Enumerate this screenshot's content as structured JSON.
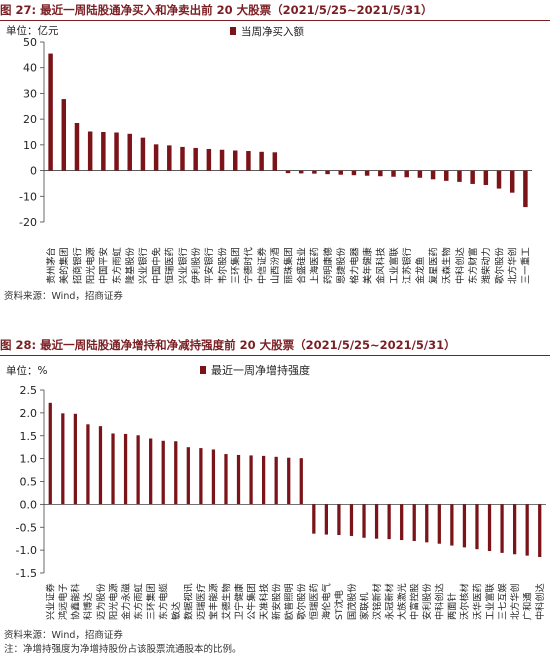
{
  "figures": [
    {
      "title": "图 27:  最近一周陆股通净买入和净卖出前 20 大股票（2021/5/25~2021/5/31）",
      "source": "资料来源：Wind，招商证券",
      "note": ""
    },
    {
      "title": "图 28:  最近一周陆股通净增持和净减持强度前 20 大股票（2021/5/25~2021/5/31）",
      "source": "资料来源：Wind，招商证券",
      "note": "注：净增持强度为净增持股份占该股票流通股本的比例。"
    }
  ],
  "colors": {
    "bar": "#7b1418",
    "title": "#7a1f23"
  },
  "chart_data": [
    {
      "type": "bar",
      "unit_label": "单位：亿元",
      "ylim": [
        -20,
        50
      ],
      "yticks": [
        -20,
        -10,
        0,
        10,
        20,
        30,
        40,
        50
      ],
      "legend": "当周净买入额",
      "legend_position": "top-center",
      "grid": false,
      "categories": [
        "贵州茅台",
        "美的集团",
        "招商银行",
        "阳光电源",
        "中国平安",
        "东方雨虹",
        "隆基股份",
        "兴业银行",
        "中国中免",
        "恒瑞医药",
        "兴业银行",
        "伊利股份",
        "平安银行",
        "韦尔股份",
        "三环集团",
        "宁德时代",
        "中信证券",
        "山西汾酒",
        "丽珠集团",
        "合盛硅业",
        "上海医药",
        "药明康德",
        "恩捷股份",
        "格力电器",
        "美年健康",
        "金风科技",
        "工业富联",
        "江苏银行",
        "金龙鱼",
        "复星医药",
        "沃森生物",
        "中科创达",
        "东方财富",
        "潍柴动力",
        "歌尔股份",
        "北方华创",
        "三一重工"
      ],
      "values": [
        45.5,
        27.8,
        18.5,
        15.2,
        15.0,
        14.8,
        14.3,
        12.8,
        10.2,
        9.8,
        9.2,
        8.8,
        8.4,
        8.1,
        7.8,
        7.6,
        7.3,
        7.1,
        -1.0,
        -1.1,
        -1.2,
        -1.4,
        -1.6,
        -1.8,
        -2.0,
        -2.2,
        -2.4,
        -2.6,
        -2.8,
        -3.4,
        -4.0,
        -4.4,
        -5.2,
        -5.6,
        -7.0,
        -8.6,
        -14.2
      ]
    },
    {
      "type": "bar",
      "unit_label": "单位：%",
      "ylim": [
        -1.5,
        2.5
      ],
      "yticks": [
        -1.5,
        -1.0,
        -0.5,
        0.0,
        0.5,
        1.0,
        1.5,
        2.0,
        2.5
      ],
      "legend": "最近一周净增持强度",
      "legend_position": "top-center",
      "grid": false,
      "categories": [
        "兴业证券",
        "鸿远电子",
        "协鑫能科",
        "科博达",
        "迈为股份",
        "阳光电源",
        "金力永磁",
        "东方雨虹",
        "三环集团",
        "东方电缆",
        "敏达",
        "数据视讯",
        "迈瑞医疗",
        "宝丰能源",
        "艾德生物",
        "卫宁健康",
        "公牛集团",
        "天准科技",
        "新安股份",
        "欧普照明",
        "歌尔股份",
        "恒瑞医药",
        "海伦电气",
        "ST沈电",
        "国茂股份",
        "家联机",
        "汉铭新材",
        "永冠新材",
        "大族激光",
        "中富控股",
        "安利股份",
        "中科创达",
        "两面针",
        "沃尔核材",
        "沃华医药",
        "工业富联",
        "三七互娱",
        "北方华创",
        "广和通",
        "中科创达"
      ],
      "values": [
        2.22,
        1.99,
        1.98,
        1.75,
        1.71,
        1.55,
        1.54,
        1.51,
        1.44,
        1.39,
        1.38,
        1.25,
        1.23,
        1.2,
        1.1,
        1.08,
        1.07,
        1.06,
        1.04,
        1.02,
        1.01,
        -0.64,
        -0.66,
        -0.67,
        -0.69,
        -0.73,
        -0.75,
        -0.76,
        -0.78,
        -0.8,
        -0.83,
        -0.86,
        -0.9,
        -0.94,
        -0.98,
        -1.02,
        -1.06,
        -1.09,
        -1.12,
        -1.15
      ]
    }
  ]
}
